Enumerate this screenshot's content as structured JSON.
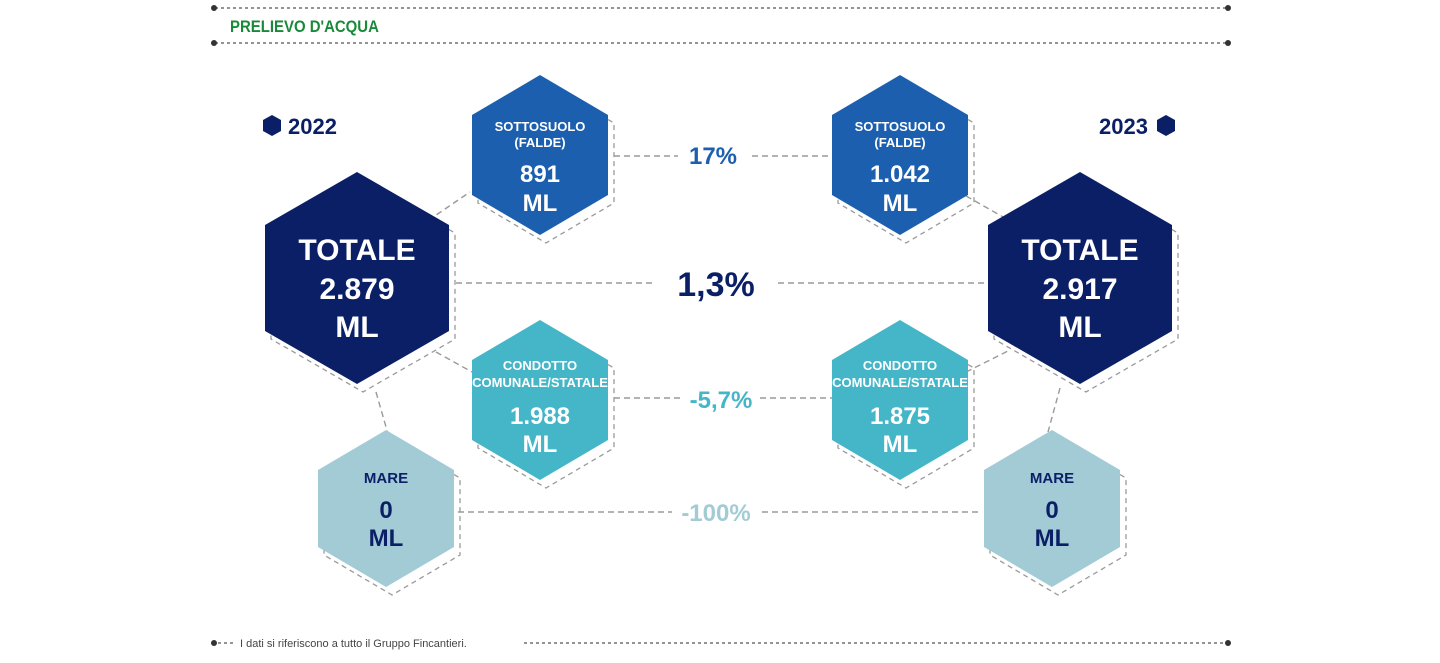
{
  "header": {
    "title": "PRELIEVO D'ACQUA"
  },
  "years": {
    "left": "2022",
    "right": "2023"
  },
  "colors": {
    "green_title": "#1a8a3a",
    "dark_navy": "#0b1f66",
    "blue": "#1c5fae",
    "teal": "#45b6c8",
    "light_blue": "#a3cbd5",
    "dash": "#9a9a9a"
  },
  "nodes": {
    "left_totale": {
      "label": "TOTALE",
      "value": "2.879",
      "unit": "ML"
    },
    "right_totale": {
      "label": "TOTALE",
      "value": "2.917",
      "unit": "ML"
    },
    "left_sottosuolo": {
      "label1": "SOTTOSUOLO",
      "label2": "(FALDE)",
      "value": "891",
      "unit": "ML"
    },
    "right_sottosuolo": {
      "label1": "SOTTOSUOLO",
      "label2": "(FALDE)",
      "value": "1.042",
      "unit": "ML"
    },
    "left_condotto": {
      "label1": "CONDOTTO",
      "label2": "COMUNALE/STATALE",
      "value": "1.988",
      "unit": "ML"
    },
    "right_condotto": {
      "label1": "CONDOTTO",
      "label2": "COMUNALE/STATALE",
      "value": "1.875",
      "unit": "ML"
    },
    "left_mare": {
      "label": "MARE",
      "value": "0",
      "unit": "ML"
    },
    "right_mare": {
      "label": "MARE",
      "value": "0",
      "unit": "ML"
    }
  },
  "changes": {
    "sottosuolo": "17%",
    "totale": "1,3%",
    "condotto": "-5,7%",
    "mare": "-100%"
  },
  "footer": {
    "note": "I dati si riferiscono a tutto il Gruppo Fincantieri."
  }
}
